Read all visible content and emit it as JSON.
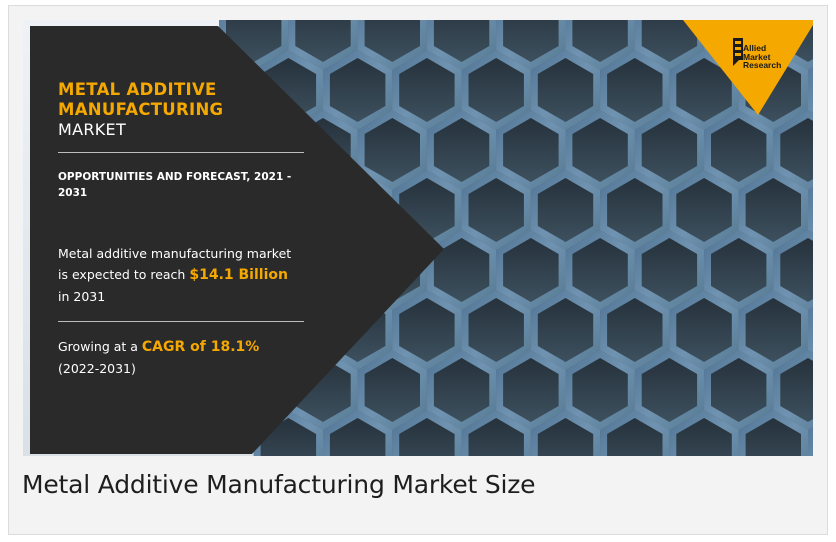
{
  "banner": {
    "title_accent": "METAL ADDITIVE\nMANUFACTURING",
    "title_plain": "MARKET",
    "subheading": "OPPORTUNITIES AND FORECAST, 2021 - 2031",
    "stat1": {
      "prefix": "Metal additive manufacturing market is expected to reach ",
      "highlight": "$14.1 Billion",
      "suffix": " in 2031"
    },
    "stat2": {
      "prefix": "Growing at a ",
      "highlight": "CAGR of 18.1%",
      "suffix": " (2022-2031)"
    },
    "logo": {
      "text": "Allied\nMarket\nResearch",
      "icon": "allied-market-research-logo-icon"
    },
    "colors": {
      "accent": "#f5a800",
      "panel": "#2a2a2a",
      "metal": "#5d7f9c"
    }
  },
  "caption": "Metal Additive Manufacturing Market Size"
}
